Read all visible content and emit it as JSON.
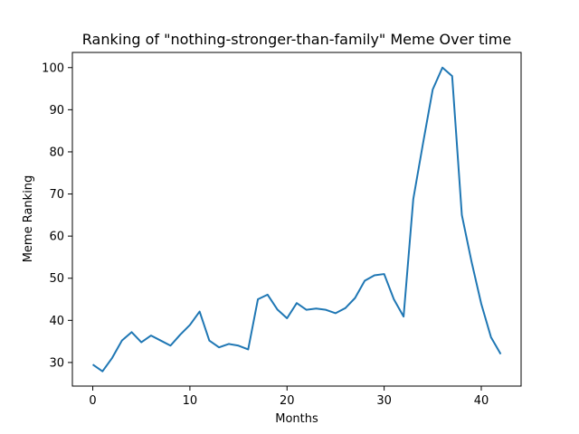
{
  "chart_data": {
    "type": "line",
    "title": "Ranking of \"nothing-stronger-than-family\" Meme Over time",
    "xlabel": "Months",
    "ylabel": "Meme Ranking",
    "xlim": [
      -2.1,
      44.1
    ],
    "ylim": [
      24.4,
      103.6
    ],
    "xticks": [
      0,
      10,
      20,
      30,
      40
    ],
    "yticks": [
      30,
      40,
      50,
      60,
      70,
      80,
      90,
      100
    ],
    "grid": false,
    "legend": "none",
    "series": [
      {
        "color": "#1f77b4",
        "x": [
          0,
          1,
          2,
          3,
          4,
          5,
          6,
          7,
          8,
          9,
          10,
          11,
          12,
          13,
          14,
          15,
          16,
          17,
          18,
          19,
          20,
          21,
          22,
          23,
          24,
          25,
          26,
          27,
          28,
          29,
          30,
          31,
          32,
          33,
          34,
          35,
          36,
          37,
          38,
          39,
          40,
          41,
          42
        ],
        "values": [
          29.5,
          27.9,
          31.1,
          35.2,
          37.2,
          34.8,
          36.4,
          35.2,
          34.0,
          36.6,
          38.9,
          42.1,
          35.2,
          33.6,
          34.4,
          34.0,
          33.1,
          45.0,
          46.1,
          42.6,
          40.5,
          44.1,
          42.5,
          42.8,
          42.5,
          41.7,
          42.9,
          45.3,
          49.4,
          50.7,
          51.0,
          45.0,
          40.9,
          68.8,
          82.0,
          94.8,
          100.0,
          98.0,
          65.0,
          53.9,
          43.9,
          36.0,
          32.0
        ]
      }
    ]
  }
}
